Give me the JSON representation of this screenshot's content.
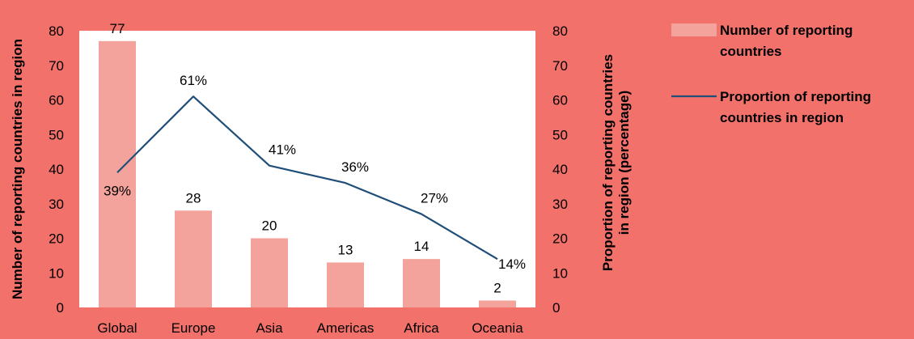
{
  "colors": {
    "background": "#f2716b",
    "plot_background": "#ffffff",
    "bar": "#f4a39c",
    "line": "#1f4e79"
  },
  "chart_data": {
    "type": "bar",
    "categories": [
      "Global",
      "Europe",
      "Asia",
      "Americas",
      "Africa",
      "Oceania"
    ],
    "series": [
      {
        "name": "Number of reporting countries",
        "type": "bar",
        "axis": "left",
        "values": [
          77,
          28,
          20,
          13,
          14,
          2
        ],
        "labels": [
          "77",
          "28",
          "20",
          "13",
          "14",
          "2"
        ]
      },
      {
        "name": "Proportion of reporting countries in region",
        "type": "line",
        "axis": "right",
        "values": [
          39,
          61,
          41,
          36,
          27,
          14
        ],
        "labels": [
          "39%",
          "61%",
          "41%",
          "36%",
          "27%",
          "14%"
        ]
      }
    ],
    "ylabel": "Number of reporting countries in region",
    "y2label": "Proportion of reporting countries in region (percentage)",
    "ylim": [
      0,
      80
    ],
    "y2lim": [
      0,
      80
    ],
    "yticks": [
      "0",
      "10",
      "20",
      "30",
      "40",
      "50",
      "60",
      "70",
      "80"
    ],
    "y2ticks": [
      "0",
      "10",
      "20",
      "30",
      "40",
      "50",
      "60",
      "70",
      "80"
    ],
    "grid": false,
    "legend_position": "right"
  }
}
